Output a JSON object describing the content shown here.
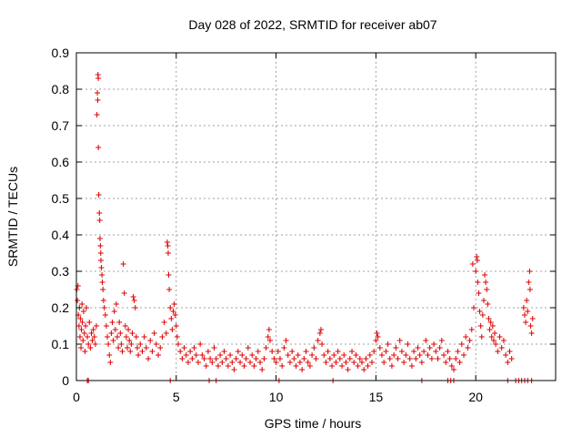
{
  "chart_data": {
    "type": "scatter",
    "title": "Day 028 of 2022, SRMTID for receiver ab07",
    "xlabel": "GPS time / hours",
    "ylabel": "SRMTID / TECUs",
    "xlim": [
      0,
      24
    ],
    "ylim": [
      0,
      0.9
    ],
    "xticks": [
      0,
      5,
      10,
      15,
      20
    ],
    "xtick_labels": [
      "0",
      "5",
      "10",
      "15",
      "20"
    ],
    "yticks": [
      0,
      0.1,
      0.2,
      0.3,
      0.4,
      0.5,
      0.6,
      0.7,
      0.8,
      0.9
    ],
    "ytick_labels": [
      "0",
      "0.1",
      "0.2",
      "0.3",
      "0.4",
      "0.5",
      "0.6",
      "0.7",
      "0.8",
      "0.9"
    ],
    "grid": true,
    "marker": "plus",
    "color": "#dd0000",
    "series": [
      {
        "name": "SRMTID",
        "points": [
          [
            0.02,
            0.25
          ],
          [
            0.05,
            0.22
          ],
          [
            0.08,
            0.26
          ],
          [
            0.1,
            0.18
          ],
          [
            0.13,
            0.15
          ],
          [
            0.15,
            0.2
          ],
          [
            0.18,
            0.12
          ],
          [
            0.2,
            0.17
          ],
          [
            0.23,
            0.09
          ],
          [
            0.25,
            0.14
          ],
          [
            0.28,
            0.21
          ],
          [
            0.3,
            0.16
          ],
          [
            0.33,
            0.11
          ],
          [
            0.36,
            0.19
          ],
          [
            0.4,
            0.13
          ],
          [
            0.43,
            0.08
          ],
          [
            0.46,
            0.15
          ],
          [
            0.5,
            0.2
          ],
          [
            0.55,
            0.12
          ],
          [
            0.6,
            0.1
          ],
          [
            0.65,
            0.16
          ],
          [
            0.7,
            0.09
          ],
          [
            0.75,
            0.13
          ],
          [
            0.8,
            0.11
          ],
          [
            0.85,
            0.14
          ],
          [
            0.9,
            0.12
          ],
          [
            0.95,
            0.1
          ],
          [
            1.0,
            0.15
          ],
          [
            1.03,
            0.73
          ],
          [
            1.05,
            0.79
          ],
          [
            1.07,
            0.77
          ],
          [
            1.08,
            0.84
          ],
          [
            1.1,
            0.83
          ],
          [
            1.1,
            0.64
          ],
          [
            1.12,
            0.51
          ],
          [
            1.15,
            0.46
          ],
          [
            1.17,
            0.44
          ],
          [
            1.18,
            0.39
          ],
          [
            1.2,
            0.37
          ],
          [
            1.22,
            0.35
          ],
          [
            1.23,
            0.33
          ],
          [
            1.25,
            0.31
          ],
          [
            1.28,
            0.29
          ],
          [
            1.3,
            0.27
          ],
          [
            1.33,
            0.25
          ],
          [
            1.36,
            0.22
          ],
          [
            1.4,
            0.2
          ],
          [
            1.45,
            0.18
          ],
          [
            1.5,
            0.15
          ],
          [
            1.55,
            0.12
          ],
          [
            1.6,
            0.1
          ],
          [
            1.65,
            0.07
          ],
          [
            1.7,
            0.05
          ],
          [
            1.75,
            0.13
          ],
          [
            1.8,
            0.16
          ],
          [
            1.85,
            0.11
          ],
          [
            1.9,
            0.19
          ],
          [
            1.95,
            0.14
          ],
          [
            2.0,
            0.21
          ],
          [
            2.05,
            0.12
          ],
          [
            2.1,
            0.09
          ],
          [
            2.15,
            0.16
          ],
          [
            2.2,
            0.13
          ],
          [
            2.25,
            0.1
          ],
          [
            2.3,
            0.08
          ],
          [
            2.35,
            0.32
          ],
          [
            2.4,
            0.24
          ],
          [
            2.45,
            0.15
          ],
          [
            2.5,
            0.12
          ],
          [
            2.55,
            0.09
          ],
          [
            2.6,
            0.14
          ],
          [
            2.65,
            0.11
          ],
          [
            2.7,
            0.08
          ],
          [
            2.75,
            0.1
          ],
          [
            2.8,
            0.13
          ],
          [
            2.85,
            0.23
          ],
          [
            2.9,
            0.22
          ],
          [
            2.95,
            0.2
          ],
          [
            3.0,
            0.12
          ],
          [
            3.05,
            0.09
          ],
          [
            3.1,
            0.07
          ],
          [
            3.2,
            0.1
          ],
          [
            3.3,
            0.08
          ],
          [
            3.4,
            0.12
          ],
          [
            3.5,
            0.09
          ],
          [
            3.6,
            0.06
          ],
          [
            3.7,
            0.11
          ],
          [
            3.8,
            0.08
          ],
          [
            3.9,
            0.13
          ],
          [
            4.0,
            0.1
          ],
          [
            4.1,
            0.07
          ],
          [
            4.2,
            0.09
          ],
          [
            4.3,
            0.12
          ],
          [
            4.4,
            0.16
          ],
          [
            4.5,
            0.13
          ],
          [
            4.55,
            0.38
          ],
          [
            4.58,
            0.37
          ],
          [
            4.6,
            0.35
          ],
          [
            4.62,
            0.29
          ],
          [
            4.65,
            0.25
          ],
          [
            4.7,
            0.2
          ],
          [
            4.75,
            0.17
          ],
          [
            4.8,
            0.14
          ],
          [
            4.85,
            0.19
          ],
          [
            4.9,
            0.21
          ],
          [
            4.95,
            0.18
          ],
          [
            5.0,
            0.15
          ],
          [
            5.05,
            0.12
          ],
          [
            5.1,
            0.1
          ],
          [
            5.2,
            0.08
          ],
          [
            5.3,
            0.06
          ],
          [
            5.4,
            0.09
          ],
          [
            5.5,
            0.07
          ],
          [
            5.6,
            0.05
          ],
          [
            5.7,
            0.08
          ],
          [
            5.8,
            0.06
          ],
          [
            5.9,
            0.09
          ],
          [
            6.0,
            0.07
          ],
          [
            6.1,
            0.05
          ],
          [
            6.2,
            0.1
          ],
          [
            6.3,
            0.07
          ],
          [
            6.4,
            0.06
          ],
          [
            6.5,
            0.04
          ],
          [
            6.6,
            0.08
          ],
          [
            6.7,
            0.06
          ],
          [
            6.8,
            0.05
          ],
          [
            6.9,
            0.09
          ],
          [
            7.0,
            0.06
          ],
          [
            7.1,
            0.04
          ],
          [
            7.2,
            0.07
          ],
          [
            7.3,
            0.05
          ],
          [
            7.4,
            0.08
          ],
          [
            7.5,
            0.06
          ],
          [
            7.6,
            0.04
          ],
          [
            7.7,
            0.07
          ],
          [
            7.8,
            0.05
          ],
          [
            7.9,
            0.03
          ],
          [
            8.0,
            0.06
          ],
          [
            8.1,
            0.08
          ],
          [
            8.2,
            0.05
          ],
          [
            8.3,
            0.07
          ],
          [
            8.4,
            0.04
          ],
          [
            8.5,
            0.06
          ],
          [
            8.6,
            0.09
          ],
          [
            8.7,
            0.05
          ],
          [
            8.8,
            0.07
          ],
          [
            8.9,
            0.04
          ],
          [
            9.0,
            0.06
          ],
          [
            9.1,
            0.08
          ],
          [
            9.2,
            0.05
          ],
          [
            9.3,
            0.03
          ],
          [
            9.4,
            0.06
          ],
          [
            9.5,
            0.09
          ],
          [
            9.6,
            0.12
          ],
          [
            9.65,
            0.14
          ],
          [
            9.7,
            0.11
          ],
          [
            9.8,
            0.08
          ],
          [
            9.9,
            0.06
          ],
          [
            10.0,
            0.05
          ],
          [
            10.1,
            0.08
          ],
          [
            10.2,
            0.06
          ],
          [
            10.3,
            0.04
          ],
          [
            10.4,
            0.09
          ],
          [
            10.5,
            0.11
          ],
          [
            10.6,
            0.07
          ],
          [
            10.7,
            0.05
          ],
          [
            10.8,
            0.08
          ],
          [
            10.9,
            0.06
          ],
          [
            11.0,
            0.04
          ],
          [
            11.1,
            0.07
          ],
          [
            11.2,
            0.05
          ],
          [
            11.3,
            0.03
          ],
          [
            11.4,
            0.06
          ],
          [
            11.5,
            0.08
          ],
          [
            11.6,
            0.05
          ],
          [
            11.7,
            0.04
          ],
          [
            11.8,
            0.07
          ],
          [
            11.9,
            0.09
          ],
          [
            12.0,
            0.06
          ],
          [
            12.1,
            0.11
          ],
          [
            12.2,
            0.13
          ],
          [
            12.25,
            0.14
          ],
          [
            12.3,
            0.1
          ],
          [
            12.4,
            0.07
          ],
          [
            12.5,
            0.05
          ],
          [
            12.6,
            0.08
          ],
          [
            12.7,
            0.06
          ],
          [
            12.8,
            0.04
          ],
          [
            12.9,
            0.07
          ],
          [
            13.0,
            0.05
          ],
          [
            13.1,
            0.08
          ],
          [
            13.2,
            0.06
          ],
          [
            13.3,
            0.04
          ],
          [
            13.4,
            0.07
          ],
          [
            13.5,
            0.05
          ],
          [
            13.6,
            0.03
          ],
          [
            13.7,
            0.06
          ],
          [
            13.8,
            0.08
          ],
          [
            13.9,
            0.05
          ],
          [
            14.0,
            0.07
          ],
          [
            14.1,
            0.04
          ],
          [
            14.2,
            0.06
          ],
          [
            14.3,
            0.05
          ],
          [
            14.4,
            0.03
          ],
          [
            14.5,
            0.06
          ],
          [
            14.6,
            0.04
          ],
          [
            14.7,
            0.07
          ],
          [
            14.8,
            0.05
          ],
          [
            14.9,
            0.08
          ],
          [
            15.0,
            0.11
          ],
          [
            15.05,
            0.13
          ],
          [
            15.1,
            0.12
          ],
          [
            15.2,
            0.09
          ],
          [
            15.3,
            0.07
          ],
          [
            15.4,
            0.05
          ],
          [
            15.5,
            0.08
          ],
          [
            15.6,
            0.1
          ],
          [
            15.7,
            0.06
          ],
          [
            15.8,
            0.04
          ],
          [
            15.9,
            0.07
          ],
          [
            16.0,
            0.09
          ],
          [
            16.1,
            0.06
          ],
          [
            16.2,
            0.11
          ],
          [
            16.3,
            0.08
          ],
          [
            16.4,
            0.05
          ],
          [
            16.5,
            0.07
          ],
          [
            16.6,
            0.1
          ],
          [
            16.7,
            0.06
          ],
          [
            16.8,
            0.04
          ],
          [
            16.9,
            0.08
          ],
          [
            17.0,
            0.06
          ],
          [
            17.1,
            0.09
          ],
          [
            17.2,
            0.07
          ],
          [
            17.3,
            0.05
          ],
          [
            17.4,
            0.08
          ],
          [
            17.5,
            0.11
          ],
          [
            17.6,
            0.07
          ],
          [
            17.7,
            0.09
          ],
          [
            17.8,
            0.06
          ],
          [
            17.9,
            0.1
          ],
          [
            18.0,
            0.08
          ],
          [
            18.1,
            0.06
          ],
          [
            18.2,
            0.09
          ],
          [
            18.3,
            0.11
          ],
          [
            18.4,
            0.07
          ],
          [
            18.5,
            0.05
          ],
          [
            18.6,
            0.08
          ],
          [
            18.7,
            0.06
          ],
          [
            18.8,
            0.04
          ],
          [
            18.9,
            0.03
          ],
          [
            19.0,
            0.06
          ],
          [
            19.1,
            0.08
          ],
          [
            19.2,
            0.05
          ],
          [
            19.3,
            0.1
          ],
          [
            19.4,
            0.07
          ],
          [
            19.5,
            0.12
          ],
          [
            19.6,
            0.09
          ],
          [
            19.7,
            0.11
          ],
          [
            19.8,
            0.14
          ],
          [
            19.85,
            0.32
          ],
          [
            19.9,
            0.2
          ],
          [
            20.0,
            0.3
          ],
          [
            20.05,
            0.34
          ],
          [
            20.08,
            0.33
          ],
          [
            20.1,
            0.27
          ],
          [
            20.15,
            0.24
          ],
          [
            20.2,
            0.19
          ],
          [
            20.25,
            0.15
          ],
          [
            20.3,
            0.12
          ],
          [
            20.35,
            0.18
          ],
          [
            20.4,
            0.22
          ],
          [
            20.45,
            0.29
          ],
          [
            20.5,
            0.27
          ],
          [
            20.55,
            0.25
          ],
          [
            20.6,
            0.21
          ],
          [
            20.65,
            0.17
          ],
          [
            20.7,
            0.14
          ],
          [
            20.75,
            0.16
          ],
          [
            20.8,
            0.12
          ],
          [
            20.85,
            0.15
          ],
          [
            20.9,
            0.11
          ],
          [
            20.95,
            0.13
          ],
          [
            21.0,
            0.1
          ],
          [
            21.1,
            0.08
          ],
          [
            21.2,
            0.12
          ],
          [
            21.3,
            0.09
          ],
          [
            21.4,
            0.11
          ],
          [
            21.5,
            0.07
          ],
          [
            21.6,
            0.05
          ],
          [
            21.7,
            0.08
          ],
          [
            21.8,
            0.06
          ],
          [
            22.4,
            0.2
          ],
          [
            22.45,
            0.18
          ],
          [
            22.5,
            0.16
          ],
          [
            22.55,
            0.22
          ],
          [
            22.6,
            0.19
          ],
          [
            22.65,
            0.27
          ],
          [
            22.7,
            0.3
          ],
          [
            22.72,
            0.25
          ],
          [
            22.75,
            0.15
          ],
          [
            22.8,
            0.13
          ],
          [
            22.85,
            0.17
          ],
          [
            0.55,
            0.0
          ],
          [
            0.6,
            0.0
          ],
          [
            4.7,
            0.0
          ],
          [
            6.65,
            0.0
          ],
          [
            7.0,
            0.0
          ],
          [
            10.15,
            0.0
          ],
          [
            12.85,
            0.0
          ],
          [
            17.3,
            0.0
          ],
          [
            18.6,
            0.0
          ],
          [
            18.75,
            0.0
          ],
          [
            18.9,
            0.0
          ],
          [
            21.6,
            0.0
          ],
          [
            22.0,
            0.0
          ],
          [
            22.15,
            0.0
          ],
          [
            22.3,
            0.0
          ],
          [
            22.45,
            0.0
          ],
          [
            22.6,
            0.0
          ],
          [
            22.8,
            0.0
          ]
        ]
      }
    ]
  }
}
